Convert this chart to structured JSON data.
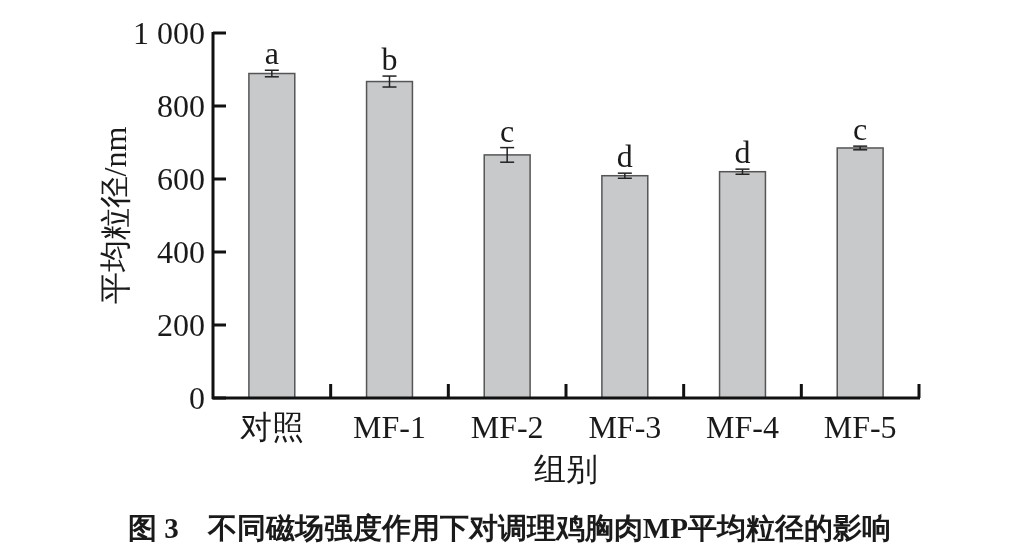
{
  "chart_data": {
    "type": "bar",
    "title": "图 3　不同磁场强度作用下对调理鸡胸肉MP平均粒径的影响",
    "xlabel": "组别",
    "ylabel": "平均粒径/nm",
    "categories": [
      "对照",
      "MF-1",
      "MF-2",
      "MF-3",
      "MF-4",
      "MF-5"
    ],
    "series": [
      {
        "color": "#c8c9cb",
        "values": [
          889,
          867,
          666,
          609,
          620,
          685
        ],
        "errors": [
          9,
          15,
          20,
          7,
          7,
          5
        ]
      }
    ],
    "ylim": [
      0,
      1000
    ],
    "yticks": [
      0,
      200,
      400,
      600,
      800,
      {
        "value": 1000,
        "label": "1 000"
      }
    ],
    "grid": false,
    "annotations": [
      {
        "text": "a",
        "x": "对照",
        "y": 898
      },
      {
        "text": "b",
        "x": "MF-1",
        "y": 882
      },
      {
        "text": "c",
        "x": "MF-2",
        "y": 686
      },
      {
        "text": "d",
        "x": "MF-3",
        "y": 616
      },
      {
        "text": "d",
        "x": "MF-4",
        "y": 627
      },
      {
        "text": "c",
        "x": "MF-5",
        "y": 690
      }
    ]
  }
}
